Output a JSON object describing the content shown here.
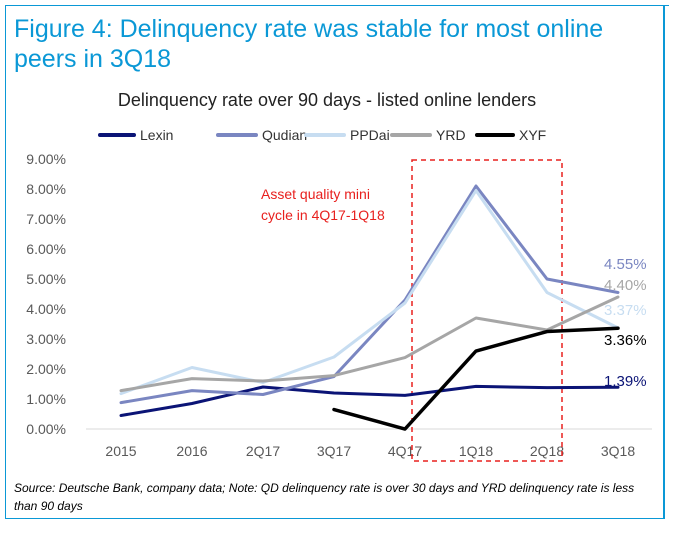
{
  "figure_title": "Figure 4: Delinquency rate was stable for most online peers in 3Q18",
  "source_note": "Source: Deutsche Bank, company data; Note: QD delinquency rate is over 30 days and YRD delinquency rate is less than 90 days",
  "chart_data": {
    "type": "line",
    "title": "Delinquency rate over 90 days - listed online lenders",
    "xlabel": "",
    "ylabel": "",
    "categories": [
      "2015",
      "2016",
      "2Q17",
      "3Q17",
      "4Q17",
      "1Q18",
      "2Q18",
      "3Q18"
    ],
    "ylim": [
      0,
      9
    ],
    "yticks": [
      0,
      1,
      2,
      3,
      4,
      5,
      6,
      7,
      8,
      9
    ],
    "ytick_labels": [
      "0.00%",
      "1.00%",
      "2.00%",
      "3.00%",
      "4.00%",
      "5.00%",
      "6.00%",
      "7.00%",
      "8.00%",
      "9.00%"
    ],
    "grid": false,
    "legend_position": "top",
    "series": [
      {
        "name": "Lexin",
        "color": "#0b1476",
        "values": [
          0.45,
          0.85,
          1.4,
          1.2,
          1.12,
          1.42,
          1.38,
          1.39
        ]
      },
      {
        "name": "Qudian",
        "color": "#7a86c1",
        "values": [
          0.88,
          1.28,
          1.15,
          1.75,
          4.3,
          8.1,
          5.0,
          4.55
        ]
      },
      {
        "name": "PPDai",
        "color": "#c7ddf1",
        "values": [
          1.18,
          2.05,
          1.55,
          2.4,
          4.2,
          7.95,
          4.55,
          3.37
        ]
      },
      {
        "name": "YRD",
        "color": "#a6a6a6",
        "values": [
          1.28,
          1.68,
          1.6,
          1.78,
          2.38,
          3.7,
          3.3,
          4.4
        ]
      },
      {
        "name": "XYF",
        "color": "#000000",
        "values": [
          null,
          null,
          null,
          0.65,
          0.0,
          2.6,
          3.25,
          3.36
        ]
      }
    ],
    "end_labels": [
      {
        "text": "4.55%",
        "color": "#7a86c1",
        "value": 4.55
      },
      {
        "text": "4.40%",
        "color": "#a6a6a6",
        "value": 4.4
      },
      {
        "text": "3.37%",
        "color": "#c7ddf1",
        "value": 3.37
      },
      {
        "text": "3.36%",
        "color": "#000000",
        "value": 3.36
      },
      {
        "text": "1.39%",
        "color": "#0b1476",
        "value": 1.39
      }
    ],
    "annotation": {
      "text_lines": [
        "Asset quality mini",
        "cycle in 4Q17-1Q18"
      ],
      "color": "#e8201e",
      "box_span": [
        "4Q17",
        "2Q18"
      ]
    }
  }
}
